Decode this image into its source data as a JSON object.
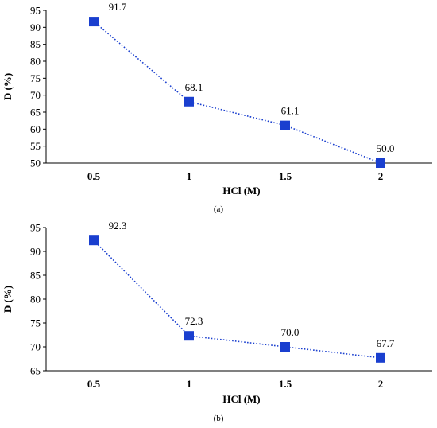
{
  "chart_data": [
    {
      "panel_label": "(a)",
      "type": "line",
      "categories": [
        "0.5",
        "1",
        "1.5",
        "2"
      ],
      "values": [
        91.7,
        68.1,
        61.1,
        50.0
      ],
      "data_labels": [
        "91.7",
        "68.1",
        "61.1",
        "50.0"
      ],
      "xlabel": "HCl (M)",
      "ylabel": "D (%)",
      "ylim": [
        50,
        95
      ],
      "yticks": [
        "50",
        "55",
        "60",
        "65",
        "70",
        "75",
        "80",
        "85",
        "90",
        "95"
      ],
      "marker": "square",
      "line_style": "dotted",
      "color": "#1a3fcf",
      "grid": false
    },
    {
      "panel_label": "(b)",
      "type": "line",
      "categories": [
        "0.5",
        "1",
        "1.5",
        "2"
      ],
      "values": [
        92.3,
        72.3,
        70.0,
        67.7
      ],
      "data_labels": [
        "92.3",
        "72.3",
        "70.0",
        "67.7"
      ],
      "xlabel": "HCl (M)",
      "ylabel": "D (%)",
      "ylim": [
        65,
        95
      ],
      "yticks": [
        "65",
        "70",
        "75",
        "80",
        "85",
        "90",
        "95"
      ],
      "marker": "square",
      "line_style": "dotted",
      "color": "#1a3fcf",
      "grid": false
    }
  ]
}
